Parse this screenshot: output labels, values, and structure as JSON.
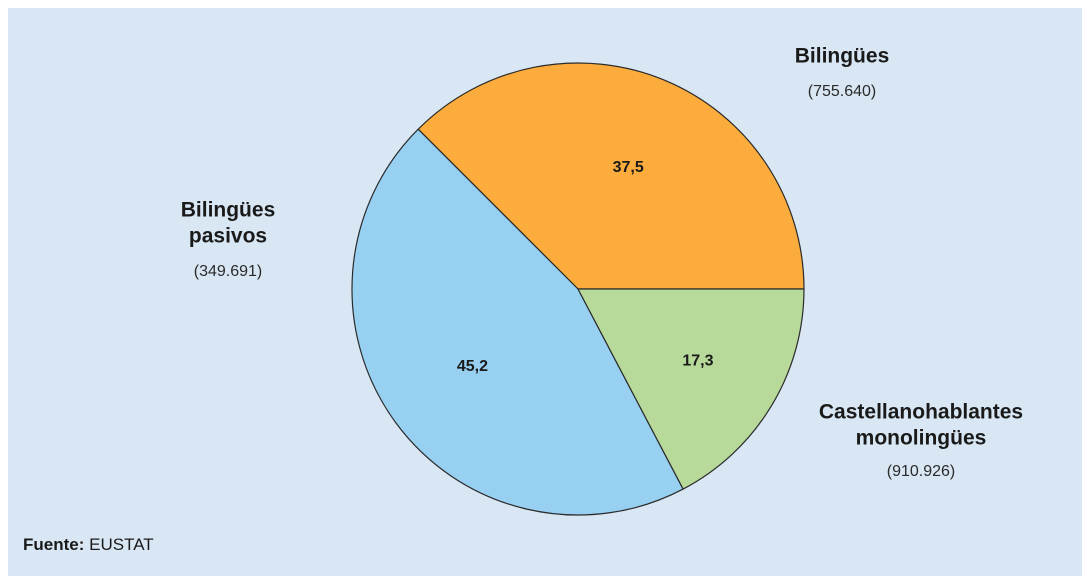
{
  "chart_data": {
    "type": "pie",
    "title": "",
    "slices": [
      {
        "name_lines": [
          "Bilingües"
        ],
        "value": 37.5,
        "value_label": "37,5",
        "count_label": "(755.640)",
        "color": "#fbac3c"
      },
      {
        "name_lines": [
          "Castellanohablantes",
          "monolingües"
        ],
        "value": 45.2,
        "value_label": "45,2",
        "count_label": "(910.926)",
        "color": "#98d0f2"
      },
      {
        "name_lines": [
          "Bilingües",
          "pasivos"
        ],
        "value": 17.3,
        "value_label": "17,3",
        "count_label": "(349.691)",
        "color": "#b7da9b"
      }
    ],
    "source": {
      "label": "Fuente:",
      "value": "EUSTAT"
    },
    "background_color": "#d9e7f4",
    "edge_color": "#2a2a2a"
  }
}
